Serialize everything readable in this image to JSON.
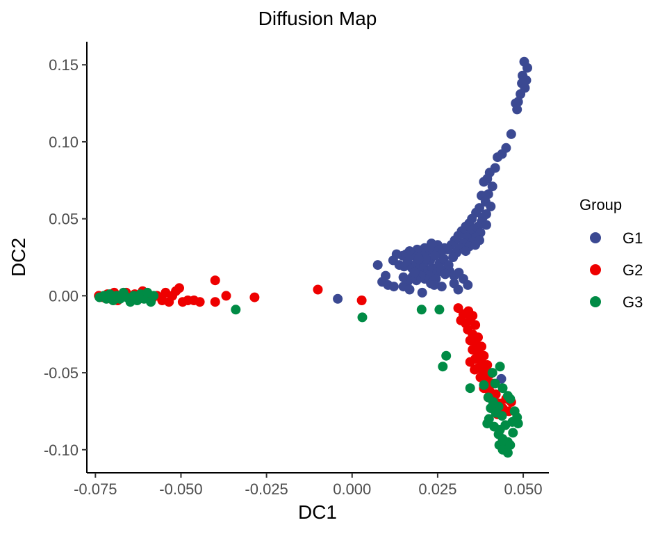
{
  "chart_data": {
    "type": "scatter",
    "title": "Diffusion Map",
    "xlabel": "DC1",
    "ylabel": "DC2",
    "xlim": [
      -0.0775,
      0.0575
    ],
    "ylim": [
      -0.115,
      0.165
    ],
    "x_ticks": [
      -0.075,
      -0.05,
      -0.025,
      0.0,
      0.025,
      0.05
    ],
    "x_tick_labels": [
      "-0.075",
      "-0.050",
      "-0.025",
      "0.000",
      "0.025",
      "0.050"
    ],
    "y_ticks": [
      -0.1,
      -0.05,
      0.0,
      0.05,
      0.1,
      0.15
    ],
    "y_tick_labels": [
      "-0.10",
      "-0.05",
      "0.00",
      "0.05",
      "0.10",
      "0.15"
    ],
    "grid": false,
    "legend": {
      "title": "Group",
      "position": "right"
    },
    "series": [
      {
        "name": "G1",
        "color": "#3B4992",
        "points": [
          [
            0.0503,
            0.152
          ],
          [
            0.0512,
            0.148
          ],
          [
            0.0498,
            0.143
          ],
          [
            0.0509,
            0.14
          ],
          [
            0.0496,
            0.138
          ],
          [
            0.0505,
            0.135
          ],
          [
            0.0492,
            0.131
          ],
          [
            0.0485,
            0.126
          ],
          [
            0.0478,
            0.125
          ],
          [
            0.0482,
            0.121
          ],
          [
            0.0465,
            0.105
          ],
          [
            0.045,
            0.096
          ],
          [
            0.0438,
            0.092
          ],
          [
            0.0425,
            0.09
          ],
          [
            0.0418,
            0.083
          ],
          [
            0.0402,
            0.08
          ],
          [
            0.0395,
            0.076
          ],
          [
            0.041,
            0.071
          ],
          [
            0.0385,
            0.074
          ],
          [
            0.0398,
            0.066
          ],
          [
            0.0378,
            0.065
          ],
          [
            0.039,
            0.061
          ],
          [
            0.0405,
            0.058
          ],
          [
            0.0372,
            0.057
          ],
          [
            0.0392,
            0.053
          ],
          [
            0.0382,
            0.051
          ],
          [
            0.0362,
            0.054
          ],
          [
            0.0378,
            0.048
          ],
          [
            0.0392,
            0.046
          ],
          [
            0.035,
            0.05
          ],
          [
            0.0368,
            0.045
          ],
          [
            0.0342,
            0.047
          ],
          [
            0.0356,
            0.043
          ],
          [
            0.0375,
            0.041
          ],
          [
            0.0332,
            0.045
          ],
          [
            0.0345,
            0.04
          ],
          [
            0.0362,
            0.038
          ],
          [
            0.032,
            0.042
          ],
          [
            0.0335,
            0.038
          ],
          [
            0.0352,
            0.035
          ],
          [
            0.0372,
            0.036
          ],
          [
            0.031,
            0.039
          ],
          [
            0.0325,
            0.034
          ],
          [
            0.0342,
            0.032
          ],
          [
            0.036,
            0.033
          ],
          [
            0.03,
            0.036
          ],
          [
            0.0315,
            0.031
          ],
          [
            0.0332,
            0.029
          ],
          [
            0.029,
            0.033
          ],
          [
            0.0305,
            0.028
          ],
          [
            0.028,
            0.03
          ],
          [
            0.0295,
            0.025
          ],
          [
            0.027,
            0.031
          ],
          [
            0.026,
            0.028
          ],
          [
            0.025,
            0.033
          ],
          [
            0.024,
            0.03
          ],
          [
            0.0232,
            0.034
          ],
          [
            0.0222,
            0.029
          ],
          [
            0.0212,
            0.031
          ],
          [
            0.02,
            0.028
          ],
          [
            0.019,
            0.03
          ],
          [
            0.018,
            0.026
          ],
          [
            0.0168,
            0.029
          ],
          [
            0.0158,
            0.027
          ],
          [
            0.0148,
            0.026
          ],
          [
            0.013,
            0.027
          ],
          [
            0.012,
            0.023
          ],
          [
            0.0138,
            0.02
          ],
          [
            0.0075,
            0.02
          ],
          [
            0.0152,
            0.019
          ],
          [
            0.0162,
            0.022
          ],
          [
            0.0175,
            0.018
          ],
          [
            0.0188,
            0.021
          ],
          [
            0.0198,
            0.017
          ],
          [
            0.021,
            0.019
          ],
          [
            0.0222,
            0.016
          ],
          [
            0.0235,
            0.018
          ],
          [
            0.0248,
            0.015
          ],
          [
            0.026,
            0.017
          ],
          [
            0.0272,
            0.014
          ],
          [
            0.0285,
            0.016
          ],
          [
            0.0298,
            0.013
          ],
          [
            0.0312,
            0.015
          ],
          [
            0.0325,
            0.011
          ],
          [
            0.0225,
            0.013
          ],
          [
            0.0212,
            0.011
          ],
          [
            0.02,
            0.013
          ],
          [
            0.0188,
            0.01
          ],
          [
            0.0175,
            0.012
          ],
          [
            0.0162,
            0.009
          ],
          [
            0.015,
            0.012
          ],
          [
            0.0098,
            0.013
          ],
          [
            0.0088,
            0.009
          ],
          [
            0.0105,
            0.007
          ],
          [
            0.0122,
            0.006
          ],
          [
            0.015,
            0.006
          ],
          [
            0.0168,
            0.004
          ],
          [
            0.0205,
            0.002
          ],
          [
            0.023,
            0.008
          ],
          [
            0.0245,
            0.011
          ],
          [
            0.0262,
            0.006
          ],
          [
            0.0298,
            0.008
          ],
          [
            0.031,
            0.004
          ],
          [
            0.0338,
            0.007
          ],
          [
            0.0255,
            0.021
          ],
          [
            0.0268,
            0.024
          ],
          [
            0.0282,
            0.02
          ],
          [
            0.0228,
            0.023
          ],
          [
            0.0242,
            0.026
          ],
          [
            0.0215,
            0.024
          ],
          [
            0.0195,
            0.024
          ],
          [
            0.0182,
            0.015
          ],
          [
            0.024,
            0.007
          ],
          [
            -0.0042,
            -0.002
          ],
          [
            0.0436,
            -0.054
          ]
        ]
      },
      {
        "name": "G2",
        "color": "#EE0000",
        "points": [
          [
            -0.074,
            0.0
          ],
          [
            -0.0728,
            -0.001
          ],
          [
            -0.0715,
            0.001
          ],
          [
            -0.0705,
            -0.002
          ],
          [
            -0.0695,
            0.002
          ],
          [
            -0.0685,
            -0.003
          ],
          [
            -0.0672,
            0.0
          ],
          [
            -0.066,
            0.002
          ],
          [
            -0.0648,
            -0.003
          ],
          [
            -0.0635,
            0.001
          ],
          [
            -0.0622,
            -0.002
          ],
          [
            -0.0612,
            0.003
          ],
          [
            -0.06,
            -0.001
          ],
          [
            -0.0585,
            -0.002
          ],
          [
            -0.057,
            0.0
          ],
          [
            -0.0555,
            -0.003
          ],
          [
            -0.0545,
            0.002
          ],
          [
            -0.0535,
            -0.004
          ],
          [
            -0.0525,
            0.0
          ],
          [
            -0.0515,
            0.003
          ],
          [
            -0.0505,
            0.005
          ],
          [
            -0.0495,
            -0.004
          ],
          [
            -0.048,
            -0.003
          ],
          [
            -0.0462,
            -0.003
          ],
          [
            -0.0445,
            -0.004
          ],
          [
            -0.04,
            0.01
          ],
          [
            -0.04,
            -0.004
          ],
          [
            -0.0368,
            0.0
          ],
          [
            -0.0285,
            -0.001
          ],
          [
            -0.01,
            0.004
          ],
          [
            0.0028,
            -0.003
          ],
          [
            0.031,
            -0.008
          ],
          [
            0.0325,
            -0.012
          ],
          [
            0.034,
            -0.01
          ],
          [
            0.0352,
            -0.013
          ],
          [
            0.0318,
            -0.016
          ],
          [
            0.0332,
            -0.018
          ],
          [
            0.0345,
            -0.016
          ],
          [
            0.036,
            -0.019
          ],
          [
            0.0338,
            -0.022
          ],
          [
            0.0352,
            -0.025
          ],
          [
            0.0368,
            -0.027
          ],
          [
            0.0345,
            -0.029
          ],
          [
            0.0362,
            -0.031
          ],
          [
            0.0378,
            -0.033
          ],
          [
            0.0352,
            -0.035
          ],
          [
            0.037,
            -0.037
          ],
          [
            0.0385,
            -0.039
          ],
          [
            0.036,
            -0.041
          ],
          [
            0.0378,
            -0.043
          ],
          [
            0.0395,
            -0.045
          ],
          [
            0.0368,
            -0.047
          ],
          [
            0.0385,
            -0.049
          ],
          [
            0.0402,
            -0.051
          ],
          [
            0.0375,
            -0.053
          ],
          [
            0.0392,
            -0.055
          ],
          [
            0.041,
            -0.057
          ],
          [
            0.0385,
            -0.06
          ],
          [
            0.0402,
            -0.062
          ],
          [
            0.042,
            -0.064
          ],
          [
            0.0398,
            -0.066
          ],
          [
            0.0415,
            -0.068
          ],
          [
            0.0432,
            -0.07
          ],
          [
            0.045,
            -0.067
          ],
          [
            0.0465,
            -0.069
          ],
          [
            0.044,
            -0.073
          ],
          [
            0.0458,
            -0.075
          ],
          [
            0.0425,
            -0.077
          ],
          [
            0.0345,
            -0.043
          ],
          [
            0.0358,
            -0.048
          ]
        ]
      },
      {
        "name": "G3",
        "color": "#008B45",
        "points": [
          [
            -0.0738,
            -0.001
          ],
          [
            -0.0725,
            0.0
          ],
          [
            -0.0718,
            -0.002
          ],
          [
            -0.0708,
            0.001
          ],
          [
            -0.0698,
            -0.003
          ],
          [
            -0.0688,
            0.0
          ],
          [
            -0.0678,
            -0.002
          ],
          [
            -0.0668,
            0.002
          ],
          [
            -0.0658,
            -0.001
          ],
          [
            -0.0648,
            -0.004
          ],
          [
            -0.0638,
            0.0
          ],
          [
            -0.0628,
            -0.003
          ],
          [
            -0.0618,
            0.001
          ],
          [
            -0.0608,
            -0.002
          ],
          [
            -0.0598,
            0.002
          ],
          [
            -0.0588,
            -0.004
          ],
          [
            -0.058,
            0.0
          ],
          [
            -0.034,
            -0.009
          ],
          [
            0.003,
            -0.014
          ],
          [
            0.0203,
            -0.009
          ],
          [
            0.0255,
            -0.009
          ],
          [
            0.0275,
            -0.039
          ],
          [
            0.0265,
            -0.046
          ],
          [
            0.0345,
            -0.06
          ],
          [
            0.0385,
            -0.058
          ],
          [
            0.041,
            -0.05
          ],
          [
            0.0432,
            -0.046
          ],
          [
            0.0418,
            -0.057
          ],
          [
            0.044,
            -0.06
          ],
          [
            0.0398,
            -0.066
          ],
          [
            0.0412,
            -0.069
          ],
          [
            0.0428,
            -0.072
          ],
          [
            0.0455,
            -0.065
          ],
          [
            0.0462,
            -0.067
          ],
          [
            0.0405,
            -0.073
          ],
          [
            0.042,
            -0.076
          ],
          [
            0.0438,
            -0.078
          ],
          [
            0.0475,
            -0.075
          ],
          [
            0.0482,
            -0.079
          ],
          [
            0.0468,
            -0.082
          ],
          [
            0.0485,
            -0.083
          ],
          [
            0.04,
            -0.08
          ],
          [
            0.0395,
            -0.083
          ],
          [
            0.0415,
            -0.085
          ],
          [
            0.0432,
            -0.087
          ],
          [
            0.0448,
            -0.084
          ],
          [
            0.0428,
            -0.09
          ],
          [
            0.044,
            -0.093
          ],
          [
            0.0455,
            -0.095
          ],
          [
            0.043,
            -0.097
          ],
          [
            0.0448,
            -0.098
          ],
          [
            0.0462,
            -0.097
          ],
          [
            0.044,
            -0.1
          ],
          [
            0.0455,
            -0.102
          ],
          [
            0.047,
            -0.089
          ]
        ]
      }
    ]
  }
}
